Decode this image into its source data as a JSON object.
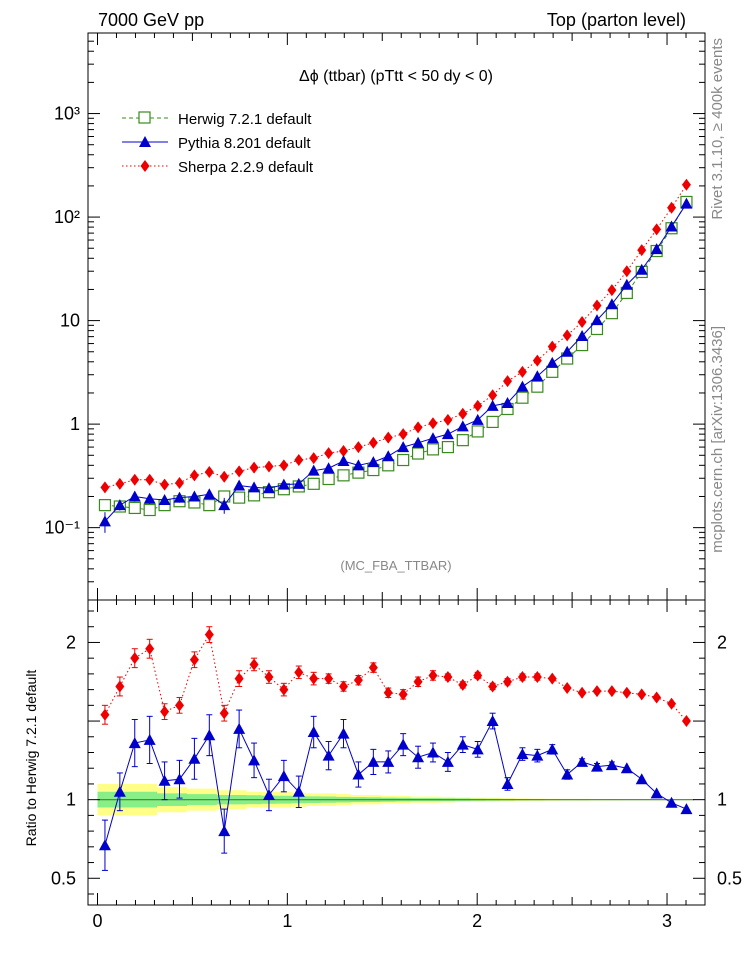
{
  "header": {
    "left": "7000 GeV pp",
    "right": "Top (parton level)"
  },
  "side_labels": {
    "rivet": "Rivet 3.1.10, ≥ 400k events",
    "mcplots": "mcplots.cern.ch [arXiv:1306.3436]"
  },
  "colors": {
    "herwig": "#3a8a1f",
    "pythia": "#0000cc",
    "sherpa": "#ee0000",
    "band_outer": "#ffff88",
    "band_inner": "#88ee88"
  },
  "chart_data": [
    {
      "type": "line",
      "title": "Δϕ (ttbar) (pTtt < 50 dy < 0)",
      "watermark": "(MC_FBA_TTBAR)",
      "yscale": "log",
      "ylim": [
        0.02,
        6000
      ],
      "xlim": [
        -0.05,
        3.2
      ],
      "y_ticks": [
        {
          "value": 0.1,
          "label": "10⁻¹"
        },
        {
          "value": 1,
          "label": "1"
        },
        {
          "value": 10,
          "label": "10"
        },
        {
          "value": 100,
          "label": "10²"
        },
        {
          "value": 1000,
          "label": "10³"
        }
      ],
      "legend_position": "top-left",
      "x": [
        0.0393,
        0.1178,
        0.1963,
        0.2749,
        0.3534,
        0.432,
        0.5105,
        0.589,
        0.6676,
        0.7461,
        0.8247,
        0.9032,
        0.9817,
        1.0603,
        1.1388,
        1.2174,
        1.2959,
        1.3744,
        1.453,
        1.5315,
        1.6101,
        1.6886,
        1.7671,
        1.8457,
        1.9242,
        2.0028,
        2.0813,
        2.1598,
        2.2384,
        2.3169,
        2.3955,
        2.474,
        2.5525,
        2.6311,
        2.7096,
        2.7882,
        2.8667,
        2.9452,
        3.0238,
        3.1023
      ],
      "series": [
        {
          "name": "Herwig 7.2.1 default",
          "marker": "open-square",
          "line": "dashed",
          "values": [
            0.165,
            0.16,
            0.155,
            0.148,
            0.165,
            0.18,
            0.175,
            0.165,
            0.2,
            0.195,
            0.205,
            0.22,
            0.235,
            0.25,
            0.265,
            0.295,
            0.32,
            0.34,
            0.36,
            0.4,
            0.45,
            0.52,
            0.57,
            0.6,
            0.7,
            0.85,
            1.05,
            1.4,
            1.8,
            2.3,
            3.2,
            4.3,
            5.8,
            8.3,
            11.8,
            18.5,
            29.5,
            47.0,
            78.0,
            140.0
          ]
        },
        {
          "name": "Pythia 8.201 default",
          "marker": "filled-triangle",
          "line": "solid",
          "values": [
            0.115,
            0.165,
            0.2,
            0.19,
            0.185,
            0.195,
            0.2,
            0.21,
            0.165,
            0.255,
            0.245,
            0.24,
            0.26,
            0.265,
            0.355,
            0.375,
            0.44,
            0.4,
            0.43,
            0.49,
            0.6,
            0.66,
            0.73,
            0.8,
            0.95,
            1.1,
            1.5,
            1.6,
            2.3,
            2.9,
            3.9,
            5.0,
            7.1,
            10.1,
            14.4,
            22.2,
            31.0,
            49.0,
            81.0,
            135.0
          ]
        },
        {
          "name": "Sherpa 2.2.9 default",
          "marker": "filled-diamond",
          "line": "dotted",
          "values": [
            0.245,
            0.265,
            0.29,
            0.29,
            0.26,
            0.27,
            0.32,
            0.345,
            0.31,
            0.35,
            0.38,
            0.39,
            0.4,
            0.45,
            0.47,
            0.525,
            0.55,
            0.6,
            0.66,
            0.74,
            0.8,
            0.93,
            1.02,
            1.1,
            1.26,
            1.5,
            1.9,
            2.6,
            3.2,
            4.1,
            5.6,
            7.2,
            9.7,
            14.0,
            19.7,
            30.0,
            48.0,
            76.0,
            123.0,
            205.0
          ]
        }
      ]
    },
    {
      "type": "line",
      "ylabel": "Ratio to Herwig 7.2.1 default",
      "yscale": "linear",
      "ylim": [
        0.33,
        2.27
      ],
      "xlim": [
        -0.05,
        3.2
      ],
      "y_ticks": [
        {
          "value": 0.5,
          "label": "0.5"
        },
        {
          "value": 1,
          "label": "1"
        },
        {
          "value": 2,
          "label": "2"
        }
      ],
      "x_ticks": [
        {
          "value": 0,
          "label": "0"
        },
        {
          "value": 1,
          "label": "1"
        },
        {
          "value": 2,
          "label": "2"
        },
        {
          "value": 3,
          "label": "3"
        }
      ],
      "series": [
        {
          "name": "Pythia 8.201 default",
          "values": [
            0.71,
            1.05,
            1.36,
            1.38,
            1.12,
            1.13,
            1.26,
            1.41,
            0.8,
            1.45,
            1.25,
            1.03,
            1.15,
            1.05,
            1.43,
            1.28,
            1.42,
            1.16,
            1.24,
            1.24,
            1.35,
            1.27,
            1.3,
            1.24,
            1.35,
            1.32,
            1.5,
            1.1,
            1.29,
            1.28,
            1.32,
            1.16,
            1.24,
            1.21,
            1.22,
            1.2,
            1.13,
            1.04,
            0.98,
            0.94
          ],
          "errors": [
            0.16,
            0.12,
            0.15,
            0.15,
            0.12,
            0.12,
            0.13,
            0.13,
            0.14,
            0.12,
            0.11,
            0.1,
            0.1,
            0.1,
            0.1,
            0.09,
            0.09,
            0.08,
            0.08,
            0.07,
            0.07,
            0.07,
            0.06,
            0.06,
            0.05,
            0.05,
            0.05,
            0.04,
            0.04,
            0.04,
            0.03,
            0.03,
            0.02,
            0.02,
            0.02,
            0.01,
            0.01,
            0.01,
            0.01,
            0.01
          ]
        },
        {
          "name": "Sherpa 2.2.9 default",
          "values": [
            1.54,
            1.72,
            1.9,
            1.96,
            1.56,
            1.6,
            1.89,
            2.05,
            1.55,
            1.77,
            1.86,
            1.78,
            1.7,
            1.81,
            1.77,
            1.77,
            1.72,
            1.76,
            1.84,
            1.68,
            1.67,
            1.75,
            1.79,
            1.78,
            1.73,
            1.79,
            1.72,
            1.75,
            1.78,
            1.78,
            1.77,
            1.71,
            1.68,
            1.69,
            1.69,
            1.68,
            1.67,
            1.65,
            1.61,
            1.5
          ],
          "errors": [
            0.06,
            0.06,
            0.06,
            0.06,
            0.05,
            0.05,
            0.05,
            0.05,
            0.05,
            0.05,
            0.04,
            0.04,
            0.04,
            0.04,
            0.04,
            0.03,
            0.03,
            0.03,
            0.03,
            0.03,
            0.03,
            0.03,
            0.03,
            0.02,
            0.02,
            0.02,
            0.02,
            0.02,
            0.02,
            0.02,
            0.01,
            0.01,
            0.01,
            0.01,
            0.01,
            0.01,
            0.01,
            0.01,
            0.01,
            0.01
          ]
        }
      ],
      "band_outer": [
        0.1,
        0.1,
        0.1,
        0.1,
        0.08,
        0.08,
        0.07,
        0.07,
        0.06,
        0.06,
        0.05,
        0.05,
        0.05,
        0.045,
        0.04,
        0.04,
        0.035,
        0.03,
        0.03,
        0.025,
        0.025,
        0.02,
        0.02,
        0.018,
        0.015,
        0.013,
        0.012,
        0.01,
        0.008,
        0.007,
        0.006,
        0.005,
        0.005,
        0.004,
        0.004,
        0.003,
        0.003,
        0.003,
        0.002,
        0.002
      ],
      "band_inner": [
        0.05,
        0.05,
        0.05,
        0.05,
        0.04,
        0.04,
        0.035,
        0.035,
        0.03,
        0.03,
        0.028,
        0.026,
        0.025,
        0.023,
        0.021,
        0.02,
        0.018,
        0.016,
        0.015,
        0.013,
        0.012,
        0.01,
        0.01,
        0.009,
        0.008,
        0.007,
        0.006,
        0.005,
        0.004,
        0.004,
        0.003,
        0.003,
        0.003,
        0.002,
        0.002,
        0.002,
        0.002,
        0.002,
        0.001,
        0.001
      ]
    }
  ]
}
